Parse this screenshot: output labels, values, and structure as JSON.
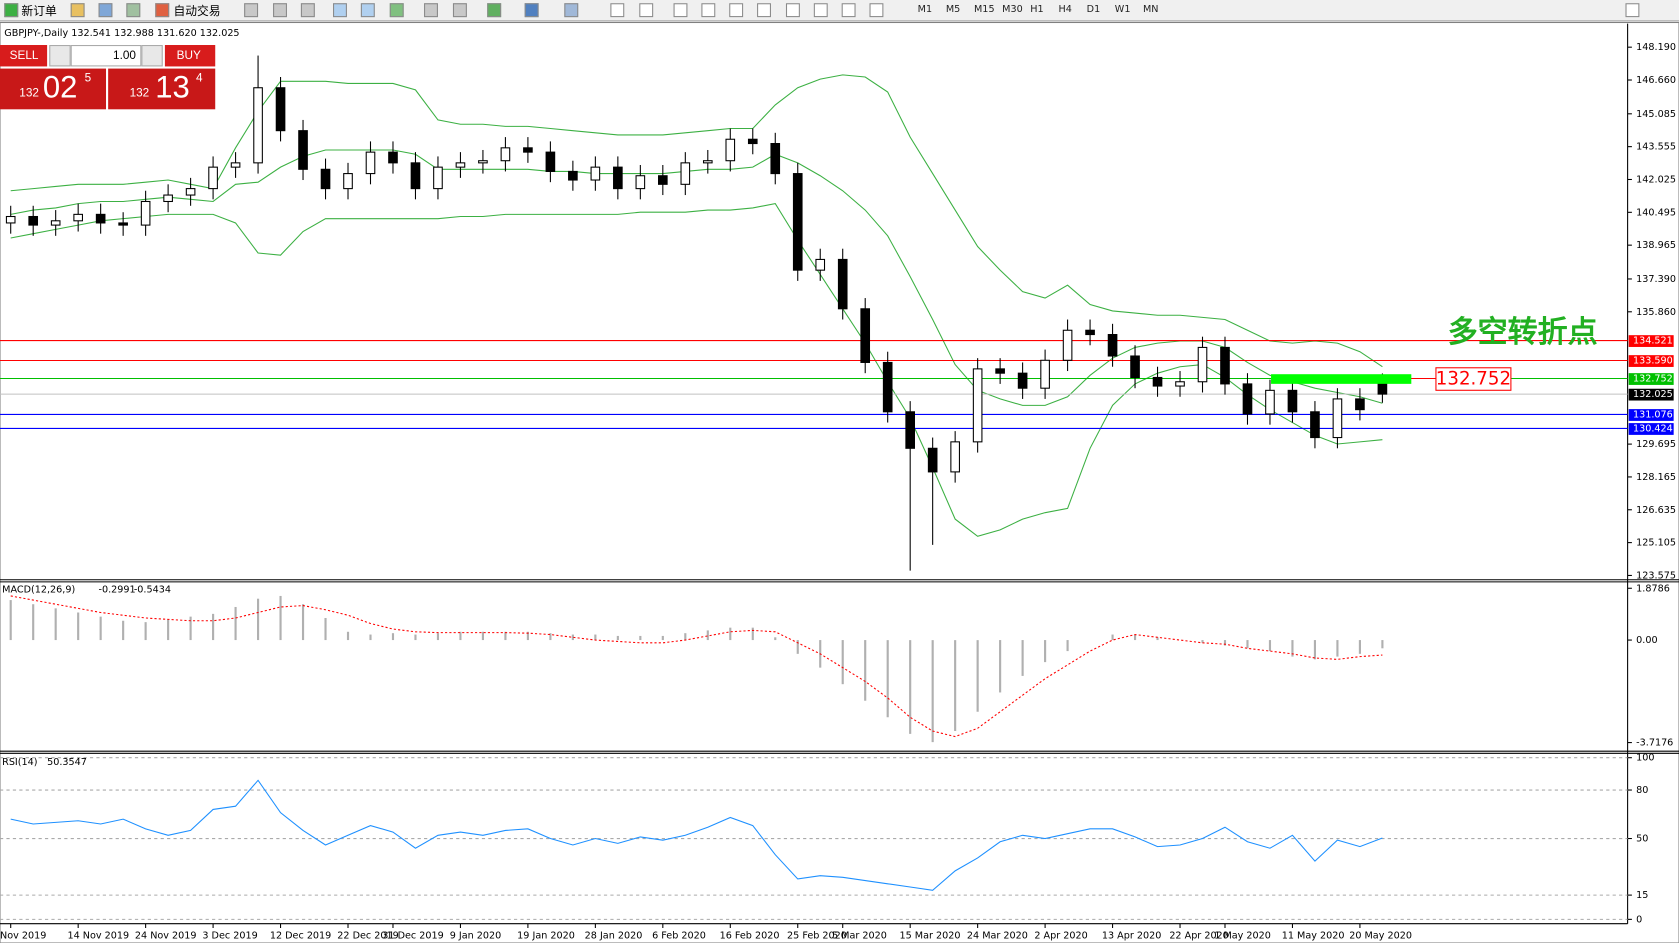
{
  "toolbar": {
    "new_order": "新订单",
    "auto_trading": "自动交易",
    "timeframes": [
      "M1",
      "M5",
      "M15",
      "M30",
      "H1",
      "H4",
      "D1",
      "W1",
      "MN"
    ]
  },
  "order_panel": {
    "sell": "SELL",
    "buy": "BUY",
    "volume": "1.00",
    "sell_price": {
      "big_figure": "132",
      "pips": "02",
      "point": "5"
    },
    "buy_price": {
      "big_figure": "132",
      "pips": "13",
      "point": "4"
    }
  },
  "chart_data": [
    {
      "type": "candlestick",
      "title": "GBPJPY-,Daily  132.541 132.988 131.620 132.025",
      "categories": [
        "Nov 2019",
        null,
        null,
        "14 Nov 2019",
        null,
        null,
        "24 Nov 2019",
        null,
        null,
        "3 Dec 2019",
        null,
        null,
        "12 Dec 2019",
        null,
        null,
        "22 Dec 2019",
        null,
        "31 Dec 2019",
        null,
        null,
        "9 Jan 2020",
        null,
        null,
        "19 Jan 2020",
        null,
        null,
        "28 Jan 2020",
        null,
        null,
        "6 Feb 2020",
        null,
        null,
        "16 Feb 2020",
        null,
        null,
        "25 Feb 2020",
        null,
        "5 Mar 2020",
        null,
        null,
        "15 Mar 2020",
        null,
        null,
        "24 Mar 2020",
        null,
        null,
        "2 Apr 2020",
        null,
        null,
        "13 Apr 2020",
        null,
        null,
        "22 Apr 2020",
        null,
        "1 May 2020",
        null,
        null,
        "11 May 2020",
        null,
        null,
        "20 May 2020",
        null
      ],
      "open": [
        140.0,
        140.3,
        139.9,
        140.1,
        140.4,
        140.0,
        139.9,
        141.0,
        141.3,
        141.6,
        142.6,
        142.8,
        146.3,
        144.3,
        142.5,
        141.6,
        142.3,
        143.3,
        142.8,
        141.6,
        142.6,
        142.8,
        142.9,
        143.5,
        143.3,
        142.4,
        142.0,
        142.6,
        141.6,
        142.2,
        141.8,
        142.8,
        142.9,
        143.9,
        143.7,
        142.3,
        137.8,
        138.3,
        136.0,
        133.5,
        131.2,
        129.5,
        128.4,
        129.8,
        133.2,
        133.0,
        132.3,
        133.6,
        135.0,
        134.8,
        133.8,
        132.8,
        132.4,
        132.6,
        134.2,
        132.5,
        131.1,
        132.2,
        131.2,
        130.0,
        131.8,
        132.541
      ],
      "high": [
        140.8,
        140.8,
        140.6,
        140.9,
        140.9,
        140.5,
        141.5,
        141.8,
        142.1,
        143.1,
        143.3,
        147.8,
        146.8,
        144.8,
        143.0,
        142.8,
        143.8,
        143.8,
        143.3,
        143.1,
        143.3,
        143.4,
        144.0,
        144.0,
        143.8,
        142.9,
        143.1,
        143.1,
        142.7,
        142.7,
        143.3,
        143.4,
        144.4,
        144.4,
        144.2,
        142.8,
        138.8,
        138.8,
        136.5,
        134.0,
        131.7,
        130.0,
        130.3,
        133.7,
        133.7,
        133.5,
        134.1,
        135.5,
        135.5,
        135.3,
        134.3,
        133.3,
        133.1,
        134.7,
        134.7,
        133.0,
        132.7,
        132.7,
        131.7,
        132.3,
        132.3,
        132.988
      ],
      "low": [
        139.5,
        139.4,
        139.4,
        139.6,
        139.5,
        139.4,
        139.4,
        140.5,
        140.8,
        141.1,
        142.1,
        142.3,
        143.8,
        142.0,
        141.1,
        141.1,
        141.8,
        142.3,
        141.1,
        141.1,
        142.1,
        142.3,
        142.4,
        142.8,
        141.9,
        141.5,
        141.5,
        141.1,
        141.1,
        141.3,
        141.3,
        142.3,
        142.4,
        143.2,
        141.8,
        137.3,
        137.3,
        135.5,
        133.0,
        130.7,
        123.8,
        125.0,
        127.9,
        129.3,
        132.5,
        131.8,
        131.8,
        133.1,
        134.3,
        133.3,
        132.3,
        131.9,
        131.9,
        132.1,
        132.0,
        130.6,
        130.6,
        130.7,
        129.5,
        129.5,
        130.8,
        131.62
      ],
      "close": [
        140.3,
        139.9,
        140.1,
        140.4,
        140.0,
        139.9,
        141.0,
        141.3,
        141.6,
        142.6,
        142.8,
        146.3,
        144.3,
        142.5,
        141.6,
        142.3,
        143.3,
        142.8,
        141.6,
        142.6,
        142.8,
        142.9,
        143.5,
        143.3,
        142.4,
        142.0,
        142.6,
        141.6,
        142.2,
        141.8,
        142.8,
        142.9,
        143.9,
        143.7,
        142.3,
        137.8,
        138.3,
        136.0,
        133.5,
        131.2,
        129.5,
        128.4,
        129.8,
        133.2,
        133.0,
        132.3,
        133.6,
        135.0,
        134.8,
        133.8,
        132.8,
        132.4,
        132.6,
        134.2,
        132.5,
        131.1,
        132.2,
        131.2,
        130.0,
        131.8,
        131.3,
        132.025
      ],
      "bands": {
        "color": "#3cb043",
        "upper": [
          141.5,
          141.6,
          141.7,
          141.8,
          141.8,
          141.8,
          141.9,
          142.0,
          141.8,
          141.6,
          143.5,
          145.2,
          146.6,
          146.6,
          146.6,
          146.5,
          146.5,
          146.5,
          146.2,
          144.8,
          144.6,
          144.6,
          144.5,
          144.5,
          144.4,
          144.3,
          144.2,
          144.1,
          144.1,
          144.1,
          144.2,
          144.3,
          144.4,
          144.4,
          145.5,
          146.3,
          146.7,
          146.9,
          146.8,
          146.1,
          144.0,
          142.3,
          140.6,
          138.9,
          137.8,
          136.8,
          136.5,
          137.1,
          136.2,
          135.9,
          135.8,
          135.7,
          135.7,
          135.6,
          135.5,
          135.0,
          134.5,
          134.4,
          134.5,
          134.4,
          134.0,
          133.3
        ],
        "middle": [
          140.4,
          140.6,
          140.7,
          140.9,
          141.0,
          141.0,
          141.1,
          141.2,
          141.1,
          141.0,
          141.8,
          141.9,
          142.6,
          143.1,
          143.4,
          143.4,
          143.4,
          143.4,
          143.2,
          142.5,
          142.5,
          142.5,
          142.5,
          142.5,
          142.4,
          142.4,
          142.3,
          142.3,
          142.3,
          142.3,
          142.4,
          142.5,
          142.5,
          142.6,
          143.2,
          142.8,
          142.2,
          141.5,
          140.6,
          139.4,
          137.5,
          135.5,
          133.4,
          132.2,
          131.8,
          131.5,
          131.5,
          131.9,
          132.9,
          133.7,
          134.2,
          134.4,
          134.5,
          134.5,
          134.2,
          133.5,
          132.9,
          132.6,
          132.3,
          132.1,
          131.9,
          131.6
        ],
        "lower": [
          139.3,
          139.5,
          139.7,
          139.9,
          140.1,
          140.2,
          140.3,
          140.4,
          140.4,
          140.4,
          140.0,
          138.6,
          138.5,
          139.6,
          140.2,
          140.2,
          140.2,
          140.2,
          140.2,
          140.2,
          140.3,
          140.3,
          140.4,
          140.4,
          140.4,
          140.4,
          140.4,
          140.4,
          140.5,
          140.5,
          140.5,
          140.6,
          140.6,
          140.7,
          140.9,
          139.2,
          137.6,
          136.0,
          134.4,
          132.6,
          130.9,
          128.6,
          126.2,
          125.4,
          125.7,
          126.2,
          126.5,
          126.7,
          129.5,
          131.5,
          132.5,
          133.0,
          133.3,
          133.4,
          132.8,
          132.0,
          131.3,
          130.7,
          130.1,
          129.7,
          129.8,
          129.9
        ]
      },
      "ylim": [
        123.425,
        149.19
      ],
      "yticks": [
        {
          "value": 148.19,
          "label": "148.190"
        },
        {
          "value": 146.66,
          "label": "146.660"
        },
        145.085,
        143.555,
        142.025,
        140.495,
        138.965,
        {
          "value": 137.39,
          "label": "137.390"
        },
        {
          "value": 135.86,
          "label": "135.860"
        },
        129.695,
        128.165,
        126.635,
        125.105,
        123.575
      ],
      "hlines": [
        {
          "value": 134.521,
          "color": "#ff0000"
        },
        {
          "value": 133.59,
          "label": "133.590",
          "color": "#ff0000"
        },
        {
          "value": 132.752,
          "color": "#00c000"
        },
        {
          "value": 132.025,
          "color": "#c0c0c0",
          "tag_color": "#000000"
        },
        {
          "value": 131.076,
          "color": "#0000ff"
        },
        {
          "value": 130.424,
          "color": "#0000ff"
        }
      ],
      "annotation": {
        "text": "多空转折点",
        "color": "#22b022"
      },
      "marker": {
        "value": 132.752,
        "color": "#00ff00",
        "box_color": "#ff0000"
      }
    },
    {
      "type": "macd",
      "title": "MACD(12,26,9)",
      "series": [
        {
          "color": "#b0b0b0",
          "values": [
            1.45,
            1.3,
            1.15,
            1.0,
            0.85,
            0.7,
            0.65,
            0.75,
            0.85,
            0.95,
            1.2,
            1.5,
            1.6,
            1.3,
            0.8,
            0.3,
            0.2,
            0.25,
            0.2,
            0.25,
            0.3,
            0.3,
            0.3,
            0.3,
            0.25,
            0.2,
            0.2,
            0.15,
            0.15,
            0.15,
            0.25,
            0.35,
            0.45,
            0.45,
            0.1,
            -0.5,
            -1.0,
            -1.6,
            -2.2,
            -2.8,
            -3.4,
            -3.7,
            -3.3,
            -2.6,
            -1.9,
            -1.3,
            -0.8,
            -0.4,
            0.0,
            0.2,
            0.2,
            0.1,
            0.0,
            -0.1,
            -0.2,
            -0.3,
            -0.4,
            -0.6,
            -0.7,
            -0.6,
            -0.5,
            -0.2991
          ]
        },
        {
          "color": "#ff0000",
          "values": [
            1.6,
            1.45,
            1.3,
            1.15,
            1.0,
            0.9,
            0.8,
            0.75,
            0.7,
            0.7,
            0.8,
            1.0,
            1.2,
            1.25,
            1.1,
            0.9,
            0.6,
            0.4,
            0.3,
            0.27,
            0.27,
            0.27,
            0.27,
            0.25,
            0.2,
            0.1,
            0.0,
            -0.05,
            -0.1,
            -0.1,
            0.0,
            0.15,
            0.3,
            0.35,
            0.3,
            -0.1,
            -0.5,
            -1.0,
            -1.5,
            -2.1,
            -2.8,
            -3.3,
            -3.5,
            -3.2,
            -2.6,
            -2.0,
            -1.4,
            -0.9,
            -0.4,
            0.0,
            0.2,
            0.1,
            0.0,
            -0.1,
            -0.15,
            -0.3,
            -0.4,
            -0.5,
            -0.65,
            -0.7,
            -0.6,
            -0.5434
          ]
        }
      ],
      "ylim": [
        -4.03,
        2.11
      ],
      "yticks": [
        1.8786,
        {
          "value": 0,
          "label": "0.00"
        },
        -3.7176
      ]
    },
    {
      "type": "line",
      "title": "RSI(14)",
      "color": "#1e90ff",
      "values": [
        62,
        59,
        60,
        61,
        59,
        62,
        56,
        52,
        55,
        68,
        70,
        86,
        66,
        55,
        46,
        52,
        58,
        54,
        44,
        52,
        54,
        52,
        55,
        56,
        50,
        46,
        50,
        47,
        51,
        49,
        52,
        57,
        63,
        58,
        40,
        25,
        27,
        26,
        24,
        22,
        20,
        18,
        30,
        38,
        48,
        52,
        50,
        53,
        56,
        56,
        51,
        45,
        46,
        50,
        57,
        48,
        44,
        52,
        36,
        49,
        45,
        50.3547
      ],
      "ylim": [
        -2.7,
        102.7
      ],
      "yticks": [
        100,
        80,
        50,
        15,
        0
      ],
      "grid": true
    }
  ]
}
